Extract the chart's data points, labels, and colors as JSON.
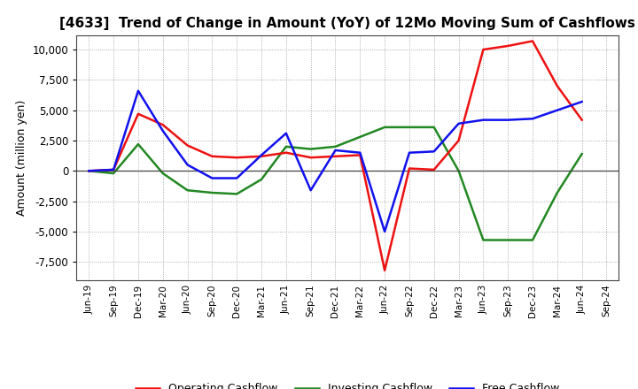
{
  "title": "[4633]  Trend of Change in Amount (YoY) of 12Mo Moving Sum of Cashflows",
  "ylabel": "Amount (million yen)",
  "xlabels": [
    "Jun-19",
    "Sep-19",
    "Dec-19",
    "Mar-20",
    "Jun-20",
    "Sep-20",
    "Dec-20",
    "Mar-21",
    "Jun-21",
    "Sep-21",
    "Dec-21",
    "Mar-22",
    "Jun-22",
    "Sep-22",
    "Dec-22",
    "Mar-23",
    "Jun-23",
    "Sep-23",
    "Dec-23",
    "Mar-24",
    "Jun-24",
    "Sep-24"
  ],
  "operating": [
    0,
    100,
    4700,
    3800,
    2100,
    1200,
    1100,
    1200,
    1500,
    1100,
    1200,
    1300,
    -8200,
    200,
    100,
    2500,
    10000,
    10300,
    10700,
    7000,
    4200,
    null
  ],
  "investing": [
    0,
    -200,
    2200,
    -200,
    -1600,
    -1800,
    -1900,
    -700,
    2000,
    1800,
    2000,
    2800,
    3600,
    3600,
    3600,
    0,
    -5700,
    -5700,
    -5700,
    -1800,
    1400,
    null
  ],
  "free": [
    0,
    100,
    6600,
    3300,
    500,
    -600,
    -600,
    1300,
    3100,
    -1600,
    1700,
    1500,
    -5000,
    1500,
    1600,
    3900,
    4200,
    4200,
    4300,
    5000,
    5700,
    null
  ],
  "ylim": [
    -9000,
    11200
  ],
  "yticks": [
    -7500,
    -5000,
    -2500,
    0,
    2500,
    5000,
    7500,
    10000
  ],
  "operating_color": "#ee1111",
  "investing_color": "#228822",
  "free_color": "#1111ee",
  "bg_color": "#ffffff",
  "grid_color": "#999999",
  "legend_labels": [
    "Operating Cashflow",
    "Investing Cashflow",
    "Free Cashflow"
  ]
}
